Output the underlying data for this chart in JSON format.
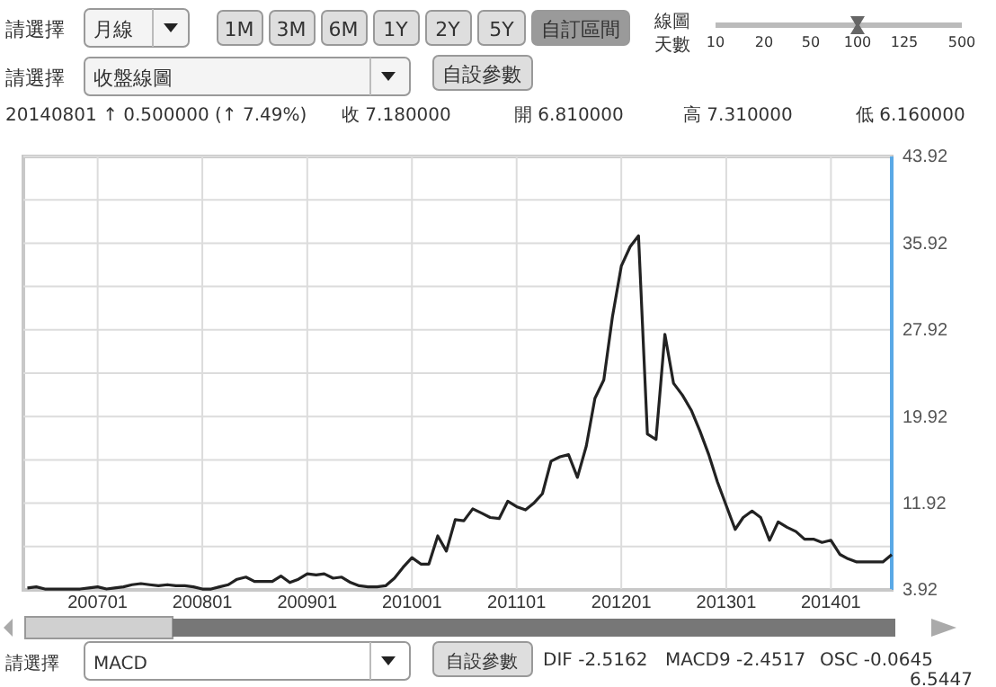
{
  "chart_data": {
    "type": "line",
    "x": [
      "2006-05",
      "2006-06",
      "2006-07",
      "2006-08",
      "2006-09",
      "2006-10",
      "2006-11",
      "2006-12",
      "2007-01",
      "2007-02",
      "2007-03",
      "2007-04",
      "2007-05",
      "2007-06",
      "2007-07",
      "2007-08",
      "2007-09",
      "2007-10",
      "2007-11",
      "2007-12",
      "2008-01",
      "2008-02",
      "2008-03",
      "2008-04",
      "2008-05",
      "2008-06",
      "2008-07",
      "2008-08",
      "2008-09",
      "2008-10",
      "2008-11",
      "2008-12",
      "2009-01",
      "2009-02",
      "2009-03",
      "2009-04",
      "2009-05",
      "2009-06",
      "2009-07",
      "2009-08",
      "2009-09",
      "2009-10",
      "2009-11",
      "2009-12",
      "2010-01",
      "2010-02",
      "2010-03",
      "2010-04",
      "2010-05",
      "2010-06",
      "2010-07",
      "2010-08",
      "2010-09",
      "2010-10",
      "2010-11",
      "2010-12",
      "2011-01",
      "2011-02",
      "2011-03",
      "2011-04",
      "2011-05",
      "2011-06",
      "2011-07",
      "2011-08",
      "2011-09",
      "2011-10",
      "2011-11",
      "2011-12",
      "2012-01",
      "2012-02",
      "2012-03",
      "2012-04",
      "2012-05",
      "2012-06",
      "2012-07",
      "2012-08",
      "2012-09",
      "2012-10",
      "2012-11",
      "2012-12",
      "2013-01",
      "2013-02",
      "2013-03",
      "2013-04",
      "2013-05",
      "2013-06",
      "2013-07",
      "2013-08",
      "2013-09",
      "2013-10",
      "2013-11",
      "2013-12",
      "2014-01",
      "2014-02",
      "2014-03",
      "2014-04",
      "2014-05",
      "2014-06",
      "2014-07",
      "2014-08"
    ],
    "series": [
      {
        "color": "#222222",
        "values": [
          4.1,
          4.2,
          4.0,
          4.0,
          4.0,
          4.0,
          4.0,
          4.1,
          4.2,
          4.0,
          4.1,
          4.2,
          4.4,
          4.5,
          4.4,
          4.3,
          4.4,
          4.3,
          4.3,
          4.2,
          4.0,
          4.0,
          4.2,
          4.4,
          4.9,
          5.1,
          4.7,
          4.7,
          4.7,
          5.2,
          4.6,
          4.9,
          5.4,
          5.3,
          5.4,
          5.0,
          5.1,
          4.6,
          4.3,
          4.2,
          4.2,
          4.3,
          5.0,
          6.0,
          6.9,
          6.3,
          6.3,
          8.9,
          7.5,
          10.4,
          10.3,
          11.4,
          11.0,
          10.6,
          10.5,
          12.1,
          11.6,
          11.3,
          11.9,
          12.8,
          15.8,
          16.2,
          16.4,
          14.3,
          17.2,
          21.6,
          23.3,
          29.1,
          33.8,
          35.6,
          36.6,
          18.3,
          17.8,
          27.5,
          23.0,
          21.9,
          20.5,
          18.6,
          16.4,
          13.9,
          11.7,
          9.5,
          10.6,
          11.2,
          10.6,
          8.5,
          10.2,
          9.7,
          9.3,
          8.6,
          8.6,
          8.3,
          8.5,
          7.2,
          6.8,
          6.5,
          6.5,
          6.5,
          6.5,
          7.18
        ]
      }
    ],
    "xlim": [
      "2006-04-17",
      "2014-08-01"
    ],
    "xticks": [
      {
        "value": "2007-01",
        "label": "200701"
      },
      {
        "value": "2008-01",
        "label": "200801"
      },
      {
        "value": "2009-01",
        "label": "200901"
      },
      {
        "value": "2010-01",
        "label": "201001"
      },
      {
        "value": "2011-01",
        "label": "201101"
      },
      {
        "value": "2012-01",
        "label": "201201"
      },
      {
        "value": "2013-01",
        "label": "201301"
      },
      {
        "value": "2014-01",
        "label": "201401"
      }
    ],
    "ylim": [
      3.92,
      43.92
    ],
    "yticks": [
      3.92,
      {
        "value": 7.92,
        "label": null
      },
      11.92,
      {
        "value": 15.92,
        "label": null
      },
      19.92,
      {
        "value": 23.92,
        "label": null
      },
      27.92,
      {
        "value": 31.92,
        "label": null
      },
      35.92,
      {
        "value": 39.92,
        "label": null
      },
      43.92
    ],
    "grid": true,
    "marker": "none",
    "line_style": "solid",
    "annotations": [
      "請選擇",
      "月線",
      "1M",
      "3M",
      "6M",
      "1Y",
      "2Y",
      "5Y",
      "自訂區間",
      "線圖",
      "天數",
      "10",
      "20",
      "50",
      "100",
      "125",
      "500",
      "請選擇",
      "收盤線圖",
      "自設參數",
      "20140801 ↑ 0.500000 (↑ 7.49%)",
      "收 7.180000",
      "開 6.810000",
      "高 7.310000",
      "低 6.160000",
      "請選擇",
      "MACD",
      "自設參數",
      "DIF -2.5162",
      "MACD9 -2.4517",
      "OSC -0.0645",
      "6.5447"
    ]
  }
}
